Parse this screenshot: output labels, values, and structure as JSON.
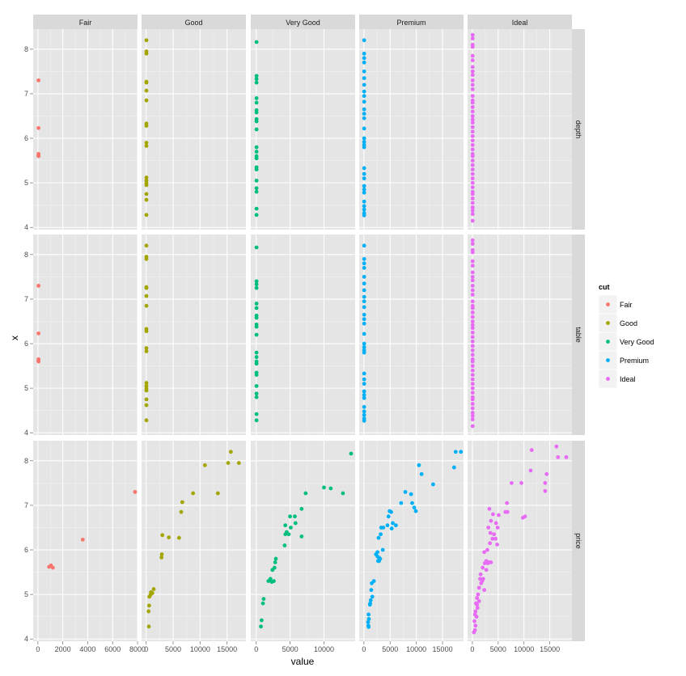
{
  "chart_data": {
    "type": "scatter",
    "facet_layout": "grid",
    "xlabel": "value",
    "ylabel": "x",
    "legend": {
      "title": "cut",
      "placement": "right",
      "entries": [
        {
          "name": "Fair",
          "color": "#f8766d"
        },
        {
          "name": "Good",
          "color": "#a3a500"
        },
        {
          "name": "Very Good",
          "color": "#00bf7d"
        },
        {
          "name": "Premium",
          "color": "#00b0f6"
        },
        {
          "name": "Ideal",
          "color": "#e76bf3"
        }
      ]
    },
    "columns": [
      "Fair",
      "Good",
      "Very Good",
      "Premium",
      "Ideal"
    ],
    "rows": [
      "depth",
      "table",
      "price"
    ],
    "ylim": [
      3.95,
      8.45
    ],
    "y_ticks": [
      4,
      5,
      6,
      7,
      8
    ],
    "y_tick_labels": [
      "4",
      "5",
      "6",
      "7",
      "8"
    ],
    "x_axes": [
      {
        "column": "Fair",
        "xlim": [
          -380,
          8000
        ],
        "ticks": [
          0,
          2000,
          4000,
          6000,
          8000
        ],
        "tick_labels": [
          "0",
          "2000",
          "4000",
          "6000",
          "8000"
        ]
      },
      {
        "column": "Good",
        "xlim": [
          -850,
          18500
        ],
        "ticks": [
          0,
          5000,
          10000,
          15000
        ],
        "tick_labels": [
          "0",
          "5000",
          "10000",
          "15000"
        ]
      },
      {
        "column": "Very Good",
        "xlim": [
          -800,
          14600
        ],
        "ticks": [
          0,
          5000,
          10000
        ],
        "tick_labels": [
          "0",
          "5000",
          "10000"
        ]
      },
      {
        "column": "Premium",
        "xlim": [
          -900,
          19000
        ],
        "ticks": [
          0,
          5000,
          10000,
          15000
        ],
        "tick_labels": [
          "0",
          "5000",
          "10000",
          "15000"
        ]
      },
      {
        "column": "Ideal",
        "xlim": [
          -930,
          19300
        ],
        "ticks": [
          0,
          5000,
          10000,
          15000
        ],
        "tick_labels": [
          "0",
          "5000",
          "10000",
          "15000"
        ]
      }
    ],
    "series": [
      {
        "name": "Fair",
        "depth_table": [
          [
            50,
            7.3
          ],
          [
            50,
            6.23
          ],
          [
            50,
            5.65
          ],
          [
            50,
            5.6
          ],
          [
            50,
            5.62
          ]
        ],
        "price": [
          [
            7800,
            7.3
          ],
          [
            3600,
            6.23
          ],
          [
            1050,
            5.65
          ],
          [
            1200,
            5.6
          ],
          [
            900,
            5.62
          ]
        ]
      },
      {
        "name": "Good",
        "depth_table": [
          [
            50,
            8.2
          ],
          [
            50,
            7.95
          ],
          [
            50,
            7.9
          ],
          [
            50,
            7.27
          ],
          [
            50,
            7.25
          ],
          [
            50,
            7.07
          ],
          [
            50,
            6.85
          ],
          [
            50,
            6.33
          ],
          [
            50,
            6.28
          ],
          [
            50,
            5.9
          ],
          [
            50,
            5.83
          ],
          [
            50,
            5.12
          ],
          [
            50,
            5.05
          ],
          [
            50,
            4.99
          ],
          [
            50,
            4.95
          ],
          [
            50,
            4.75
          ],
          [
            50,
            4.62
          ],
          [
            50,
            4.28
          ]
        ],
        "price": [
          [
            15700,
            8.2
          ],
          [
            15200,
            7.95
          ],
          [
            17200,
            7.95
          ],
          [
            10900,
            7.9
          ],
          [
            13300,
            7.27
          ],
          [
            8700,
            7.27
          ],
          [
            6700,
            7.07
          ],
          [
            6500,
            6.85
          ],
          [
            3000,
            6.33
          ],
          [
            4200,
            6.28
          ],
          [
            6100,
            6.27
          ],
          [
            2900,
            5.9
          ],
          [
            2850,
            5.83
          ],
          [
            1400,
            5.12
          ],
          [
            900,
            5.05
          ],
          [
            1150,
            5.03
          ],
          [
            800,
            4.99
          ],
          [
            600,
            4.95
          ],
          [
            550,
            4.75
          ],
          [
            450,
            4.62
          ],
          [
            500,
            4.28
          ]
        ]
      },
      {
        "name": "Very Good",
        "depth_table": [
          [
            50,
            8.16
          ],
          [
            50,
            7.4
          ],
          [
            50,
            7.33
          ],
          [
            50,
            7.25
          ],
          [
            50,
            6.9
          ],
          [
            50,
            6.8
          ],
          [
            50,
            6.63
          ],
          [
            50,
            6.58
          ],
          [
            50,
            6.43
          ],
          [
            50,
            6.38
          ],
          [
            50,
            6.2
          ],
          [
            50,
            5.8
          ],
          [
            50,
            5.7
          ],
          [
            50,
            5.6
          ],
          [
            50,
            5.55
          ],
          [
            50,
            5.35
          ],
          [
            50,
            5.3
          ],
          [
            50,
            5.05
          ],
          [
            50,
            4.88
          ],
          [
            50,
            4.8
          ],
          [
            50,
            4.42
          ],
          [
            50,
            4.28
          ]
        ],
        "price": [
          [
            14000,
            8.16
          ],
          [
            10000,
            7.4
          ],
          [
            11000,
            7.38
          ],
          [
            12800,
            7.27
          ],
          [
            7300,
            7.27
          ],
          [
            6700,
            6.92
          ],
          [
            5000,
            6.75
          ],
          [
            5700,
            6.75
          ],
          [
            5800,
            6.6
          ],
          [
            4300,
            6.55
          ],
          [
            5100,
            6.5
          ],
          [
            4500,
            6.4
          ],
          [
            4300,
            6.35
          ],
          [
            4800,
            6.35
          ],
          [
            6700,
            6.3
          ],
          [
            4200,
            6.1
          ],
          [
            2900,
            5.8
          ],
          [
            2800,
            5.72
          ],
          [
            2700,
            5.6
          ],
          [
            2400,
            5.55
          ],
          [
            2100,
            5.35
          ],
          [
            1800,
            5.3
          ],
          [
            2600,
            5.3
          ],
          [
            2300,
            5.28
          ],
          [
            1100,
            4.9
          ],
          [
            1000,
            4.8
          ],
          [
            800,
            4.42
          ],
          [
            700,
            4.28
          ]
        ]
      },
      {
        "name": "Premium",
        "depth_table": [
          [
            50,
            8.2
          ],
          [
            50,
            7.9
          ],
          [
            50,
            7.8
          ],
          [
            50,
            7.7
          ],
          [
            50,
            7.5
          ],
          [
            50,
            7.35
          ],
          [
            50,
            7.2
          ],
          [
            50,
            7.05
          ],
          [
            50,
            6.95
          ],
          [
            50,
            6.82
          ],
          [
            50,
            6.65
          ],
          [
            50,
            6.55
          ],
          [
            50,
            6.45
          ],
          [
            50,
            6.22
          ],
          [
            50,
            6.0
          ],
          [
            50,
            5.92
          ],
          [
            50,
            5.85
          ],
          [
            50,
            5.8
          ],
          [
            50,
            5.33
          ],
          [
            50,
            5.2
          ],
          [
            50,
            5.1
          ],
          [
            50,
            4.93
          ],
          [
            50,
            4.85
          ],
          [
            50,
            4.78
          ],
          [
            50,
            4.58
          ],
          [
            50,
            4.48
          ],
          [
            50,
            4.4
          ],
          [
            50,
            4.32
          ],
          [
            50,
            4.27
          ]
        ],
        "price": [
          [
            17500,
            8.2
          ],
          [
            18500,
            8.2
          ],
          [
            10500,
            7.9
          ],
          [
            17200,
            7.85
          ],
          [
            11000,
            7.7
          ],
          [
            13200,
            7.47
          ],
          [
            7900,
            7.3
          ],
          [
            9000,
            7.25
          ],
          [
            7100,
            7.05
          ],
          [
            9200,
            7.05
          ],
          [
            9600,
            6.95
          ],
          [
            9900,
            6.87
          ],
          [
            4900,
            6.87
          ],
          [
            5200,
            6.85
          ],
          [
            4700,
            6.75
          ],
          [
            5500,
            6.6
          ],
          [
            6100,
            6.55
          ],
          [
            4500,
            6.55
          ],
          [
            3700,
            6.5
          ],
          [
            3300,
            6.5
          ],
          [
            5300,
            6.48
          ],
          [
            3200,
            6.35
          ],
          [
            2800,
            6.27
          ],
          [
            3600,
            6.0
          ],
          [
            2600,
            5.95
          ],
          [
            2300,
            5.9
          ],
          [
            2600,
            5.85
          ],
          [
            2900,
            5.82
          ],
          [
            3000,
            5.8
          ],
          [
            2700,
            5.75
          ],
          [
            2900,
            5.75
          ],
          [
            3100,
            5.8
          ],
          [
            1900,
            5.3
          ],
          [
            1500,
            5.25
          ],
          [
            1400,
            5.1
          ],
          [
            1600,
            4.95
          ],
          [
            1300,
            4.87
          ],
          [
            1200,
            4.8
          ],
          [
            1150,
            4.77
          ],
          [
            900,
            4.55
          ],
          [
            950,
            4.45
          ],
          [
            800,
            4.38
          ],
          [
            850,
            4.3
          ],
          [
            900,
            4.27
          ]
        ]
      },
      {
        "name": "Ideal",
        "depth_table": [
          [
            50,
            8.32
          ],
          [
            50,
            8.24
          ],
          [
            50,
            8.1
          ],
          [
            50,
            8.05
          ],
          [
            50,
            7.85
          ],
          [
            50,
            7.75
          ],
          [
            50,
            7.6
          ],
          [
            50,
            7.5
          ],
          [
            50,
            7.42
          ],
          [
            50,
            7.3
          ],
          [
            50,
            7.2
          ],
          [
            50,
            7.1
          ],
          [
            50,
            6.95
          ],
          [
            50,
            6.85
          ],
          [
            50,
            6.8
          ],
          [
            50,
            6.7
          ],
          [
            50,
            6.6
          ],
          [
            50,
            6.5
          ],
          [
            50,
            6.42
          ],
          [
            50,
            6.35
          ],
          [
            50,
            6.25
          ],
          [
            50,
            6.15
          ],
          [
            50,
            6.05
          ],
          [
            50,
            5.95
          ],
          [
            50,
            5.85
          ],
          [
            50,
            5.75
          ],
          [
            50,
            5.65
          ],
          [
            50,
            5.6
          ],
          [
            50,
            5.5
          ],
          [
            50,
            5.4
          ],
          [
            50,
            5.3
          ],
          [
            50,
            5.2
          ],
          [
            50,
            5.1
          ],
          [
            50,
            5.0
          ],
          [
            50,
            4.9
          ],
          [
            50,
            4.8
          ],
          [
            50,
            4.75
          ],
          [
            50,
            4.65
          ],
          [
            50,
            4.55
          ],
          [
            50,
            4.45
          ],
          [
            50,
            4.38
          ],
          [
            50,
            4.3
          ],
          [
            50,
            4.15
          ]
        ],
        "price": [
          [
            16300,
            8.32
          ],
          [
            11500,
            8.24
          ],
          [
            16600,
            8.08
          ],
          [
            18200,
            8.08
          ],
          [
            11300,
            7.78
          ],
          [
            14400,
            7.7
          ],
          [
            7600,
            7.5
          ],
          [
            9500,
            7.5
          ],
          [
            14100,
            7.5
          ],
          [
            14100,
            7.32
          ],
          [
            3300,
            6.92
          ],
          [
            6700,
            7.05
          ],
          [
            6400,
            6.85
          ],
          [
            6800,
            6.85
          ],
          [
            10200,
            6.75
          ],
          [
            9800,
            6.72
          ],
          [
            4000,
            6.8
          ],
          [
            5100,
            6.78
          ],
          [
            3600,
            6.65
          ],
          [
            4600,
            6.6
          ],
          [
            3100,
            6.5
          ],
          [
            4900,
            6.5
          ],
          [
            3500,
            6.38
          ],
          [
            4200,
            6.35
          ],
          [
            4500,
            6.25
          ],
          [
            3900,
            6.25
          ],
          [
            3400,
            6.15
          ],
          [
            4800,
            6.12
          ],
          [
            2900,
            6.0
          ],
          [
            2300,
            5.95
          ],
          [
            2700,
            5.75
          ],
          [
            3200,
            5.72
          ],
          [
            3600,
            5.72
          ],
          [
            3000,
            5.7
          ],
          [
            2400,
            5.7
          ],
          [
            2000,
            5.6
          ],
          [
            2700,
            5.55
          ],
          [
            1600,
            5.45
          ],
          [
            2100,
            5.35
          ],
          [
            1900,
            5.3
          ],
          [
            1500,
            5.35
          ],
          [
            1700,
            5.25
          ],
          [
            1300,
            5.15
          ],
          [
            2300,
            5.1
          ],
          [
            1100,
            5.0
          ],
          [
            900,
            4.92
          ],
          [
            1300,
            4.85
          ],
          [
            700,
            4.8
          ],
          [
            900,
            4.77
          ],
          [
            1000,
            4.7
          ],
          [
            600,
            4.62
          ],
          [
            500,
            4.55
          ],
          [
            800,
            4.5
          ],
          [
            400,
            4.4
          ],
          [
            600,
            4.3
          ],
          [
            500,
            4.2
          ],
          [
            300,
            4.15
          ]
        ]
      }
    ]
  }
}
